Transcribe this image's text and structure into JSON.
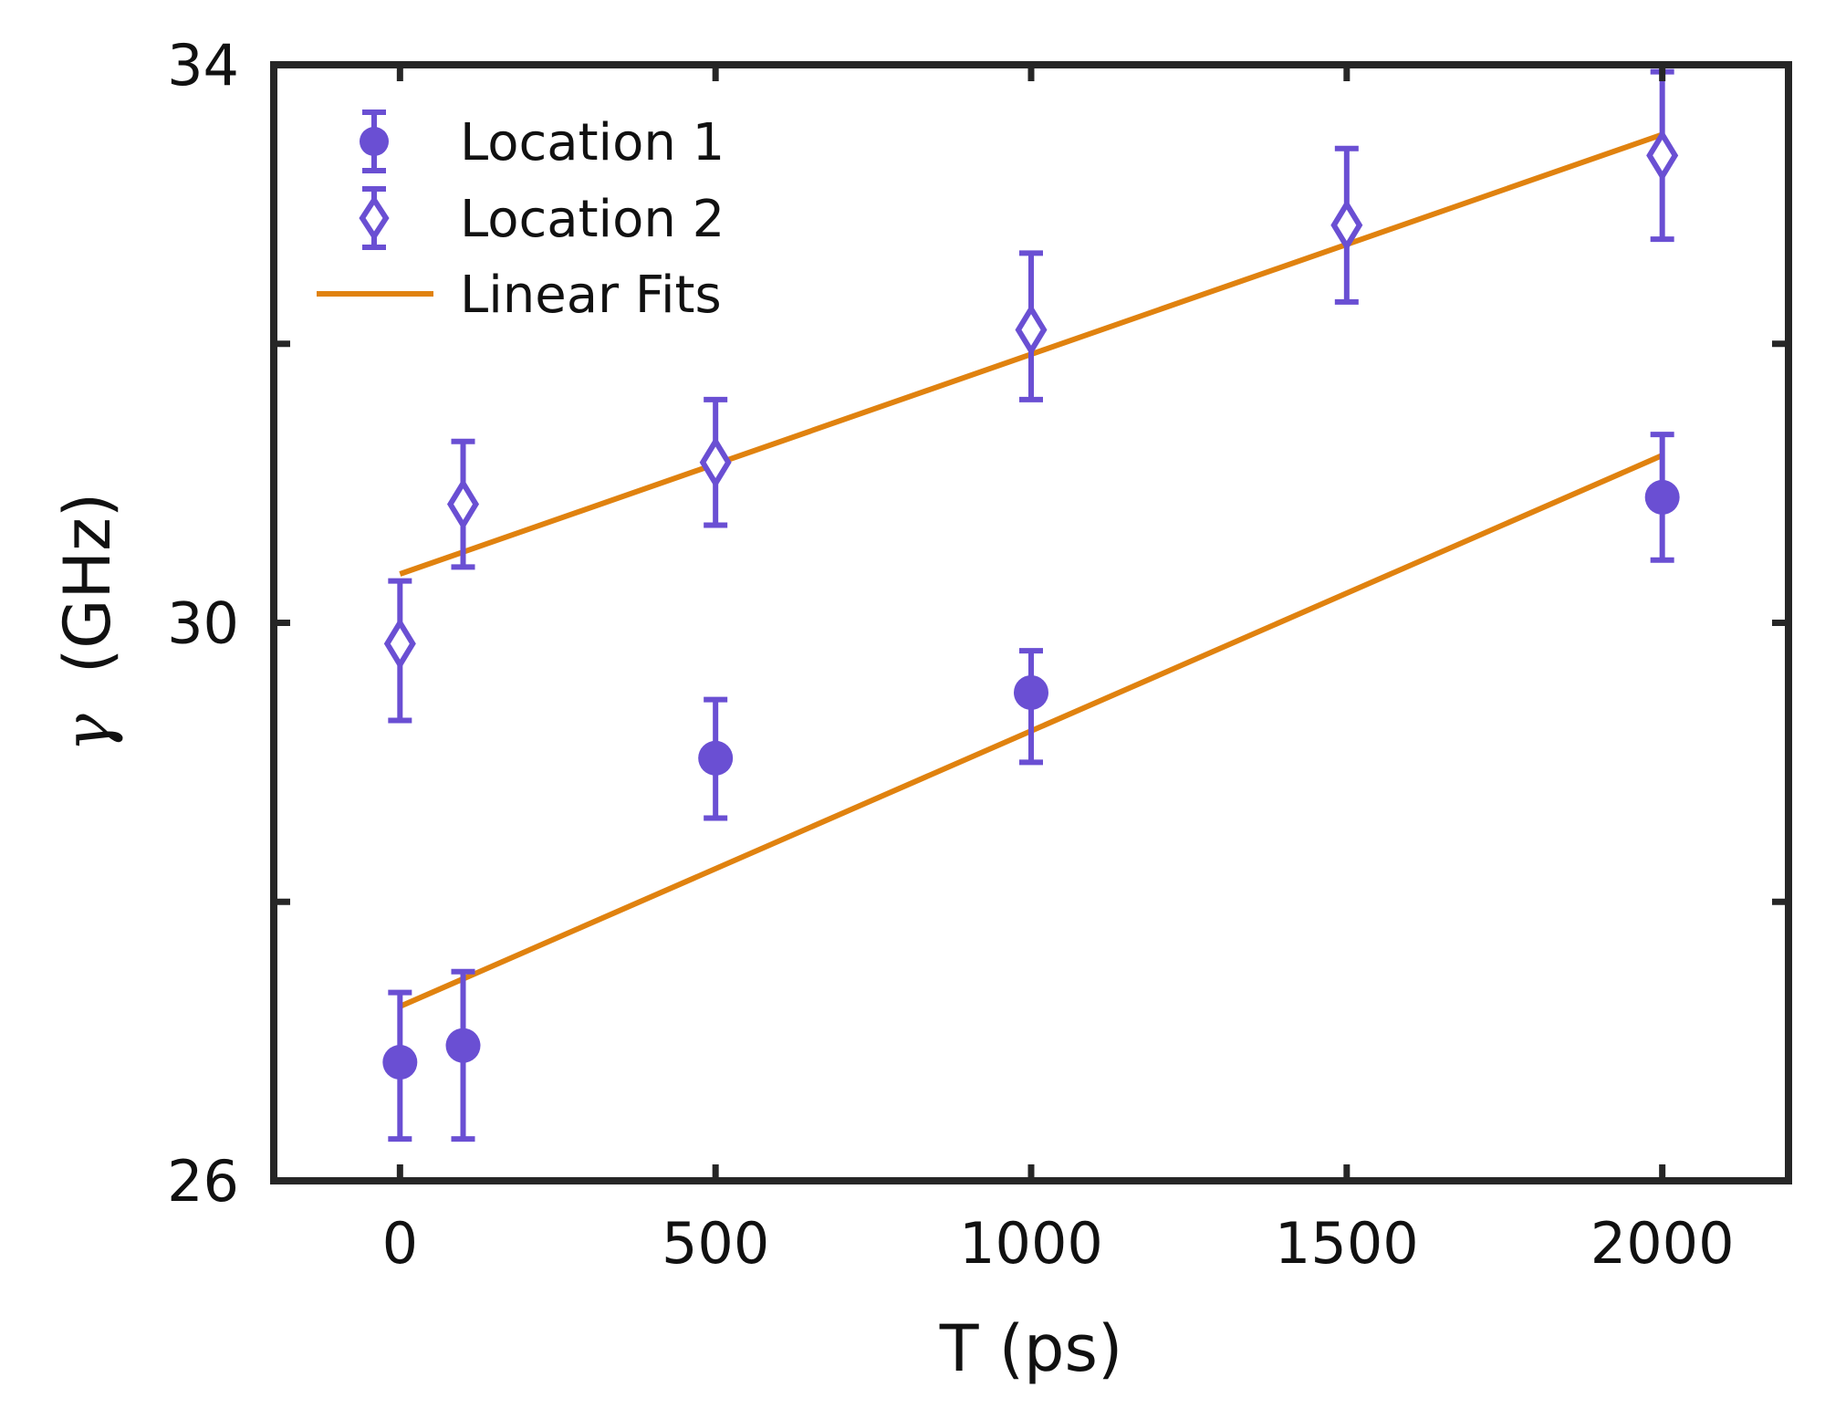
{
  "chart_data": {
    "type": "scatter",
    "title": "",
    "xlabel": "T (ps)",
    "ylabel_symbol": "γ",
    "ylabel_unit": "(GHz)",
    "xlim": [
      -200,
      2200
    ],
    "ylim": [
      26,
      34
    ],
    "xticks": [
      0,
      500,
      1000,
      1500,
      2000
    ],
    "xtick_labels": [
      "0",
      "500",
      "1000",
      "1500",
      "2000"
    ],
    "yticks": [
      26,
      28,
      30,
      32,
      34
    ],
    "ytick_labels": [
      "26",
      "",
      "30",
      "",
      "34"
    ],
    "grid": false,
    "legend_position": "top-left",
    "colors": {
      "marker": "#6a4fd3",
      "fit": "#e0820f",
      "axis": "#262626"
    },
    "series": [
      {
        "name": "Location 1",
        "marker": "filled-circle",
        "x": [
          0,
          100,
          500,
          1000,
          2000
        ],
        "y": [
          26.85,
          26.97,
          29.03,
          29.5,
          30.9
        ],
        "yerr_low": [
          26.3,
          26.3,
          28.6,
          29.0,
          30.45
        ],
        "yerr_high": [
          27.35,
          27.5,
          29.45,
          29.8,
          31.35
        ]
      },
      {
        "name": "Location 2",
        "marker": "open-diamond",
        "x": [
          0,
          100,
          500,
          1000,
          1500,
          2000
        ],
        "y": [
          29.85,
          30.85,
          31.15,
          32.1,
          32.85,
          33.35
        ],
        "yerr_low": [
          29.3,
          30.4,
          30.7,
          31.6,
          32.3,
          32.75
        ],
        "yerr_high": [
          30.3,
          31.3,
          31.6,
          32.65,
          33.4,
          33.95
        ]
      }
    ],
    "fits": [
      {
        "name": "Linear Fits",
        "for": "Location 1",
        "x": [
          0,
          2000
        ],
        "y": [
          27.25,
          31.2
        ]
      },
      {
        "name": "Linear Fits",
        "for": "Location 2",
        "x": [
          0,
          2000
        ],
        "y": [
          30.35,
          33.5
        ]
      }
    ],
    "legend": [
      "Location 1",
      "Location 2",
      "Linear Fits"
    ]
  }
}
